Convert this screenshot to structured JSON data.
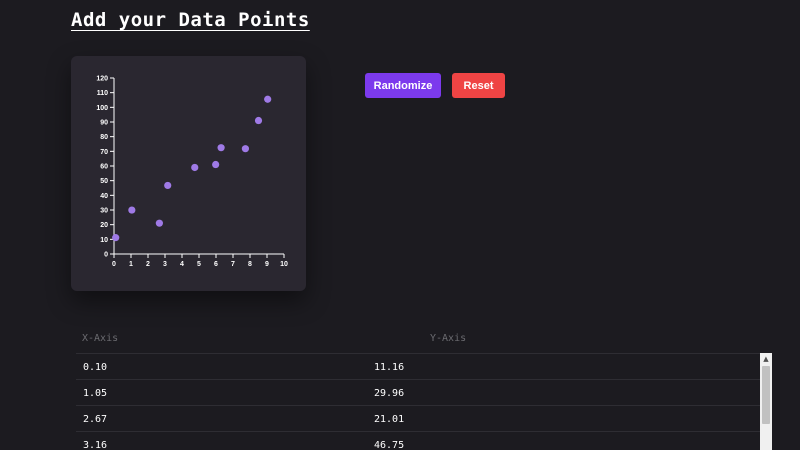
{
  "page": {
    "title": "Add your Data Points"
  },
  "controls": {
    "randomize_label": "Randomize",
    "reset_label": "Reset"
  },
  "table": {
    "headers": [
      "X-Axis",
      "Y-Axis"
    ],
    "rows": [
      [
        "0.10",
        "11.16"
      ],
      [
        "1.05",
        "29.96"
      ],
      [
        "2.67",
        "21.01"
      ],
      [
        "3.16",
        "46.75"
      ]
    ]
  },
  "colors": {
    "background": "#1c1b20",
    "card": "#2a2730",
    "point": "#9f7ae6",
    "randomize_button": "#7c3aed",
    "reset_button": "#ef4444"
  },
  "chart_data": {
    "type": "scatter",
    "x": [
      0.1,
      1.05,
      2.67,
      3.16,
      4.75,
      5.98,
      6.3,
      7.73,
      8.5,
      9.04
    ],
    "y": [
      11.16,
      29.96,
      21.01,
      46.75,
      59.0,
      61.0,
      72.5,
      71.8,
      91.0,
      105.5
    ],
    "xlim": [
      0,
      10
    ],
    "ylim": [
      0,
      120
    ],
    "x_ticks": [
      0,
      1,
      2,
      3,
      4,
      5,
      6,
      7,
      8,
      9,
      10
    ],
    "y_ticks": [
      0,
      10,
      20,
      30,
      40,
      50,
      60,
      70,
      80,
      90,
      100,
      110,
      120
    ],
    "title": "",
    "xlabel": "",
    "ylabel": "",
    "grid": false
  }
}
